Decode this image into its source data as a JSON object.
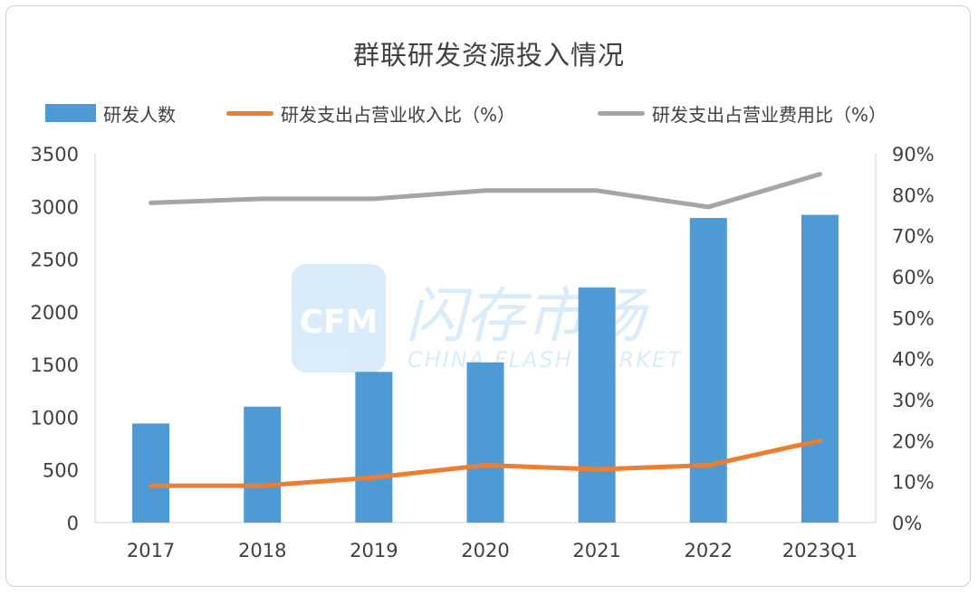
{
  "chart_data": {
    "type": "bar",
    "title": "群联研发资源投入情况",
    "categories": [
      "2017",
      "2018",
      "2019",
      "2020",
      "2021",
      "2022",
      "2023Q1"
    ],
    "series": [
      {
        "name": "研发人数",
        "type": "bar",
        "axis": "left",
        "color": "#4e9ad4",
        "values": [
          940,
          1100,
          1430,
          1520,
          2230,
          2890,
          2920
        ]
      },
      {
        "name": "研发支出占营业收入比（%）",
        "type": "line",
        "axis": "right",
        "color": "#ed7d31",
        "values": [
          9,
          9,
          11,
          14,
          13,
          14,
          20
        ]
      },
      {
        "name": "研发支出占营业费用比（%）",
        "type": "line",
        "axis": "right",
        "color": "#a5a5a5",
        "values": [
          78,
          79,
          79,
          81,
          81,
          77,
          85
        ]
      }
    ],
    "y_left": {
      "min": 0,
      "max": 3500,
      "ticks": [
        "0",
        "500",
        "1000",
        "1500",
        "2000",
        "2500",
        "3000",
        "3500"
      ]
    },
    "y_right": {
      "min": 0,
      "max": 90,
      "ticks": [
        "0%",
        "10%",
        "20%",
        "30%",
        "40%",
        "50%",
        "60%",
        "70%",
        "80%",
        "90%"
      ]
    },
    "grid": false,
    "legend_position": "top"
  },
  "watermark": {
    "logo_text": "CFM",
    "brand_text": "闪存市场",
    "sub_text": "CHINA FLASH MARKET"
  }
}
